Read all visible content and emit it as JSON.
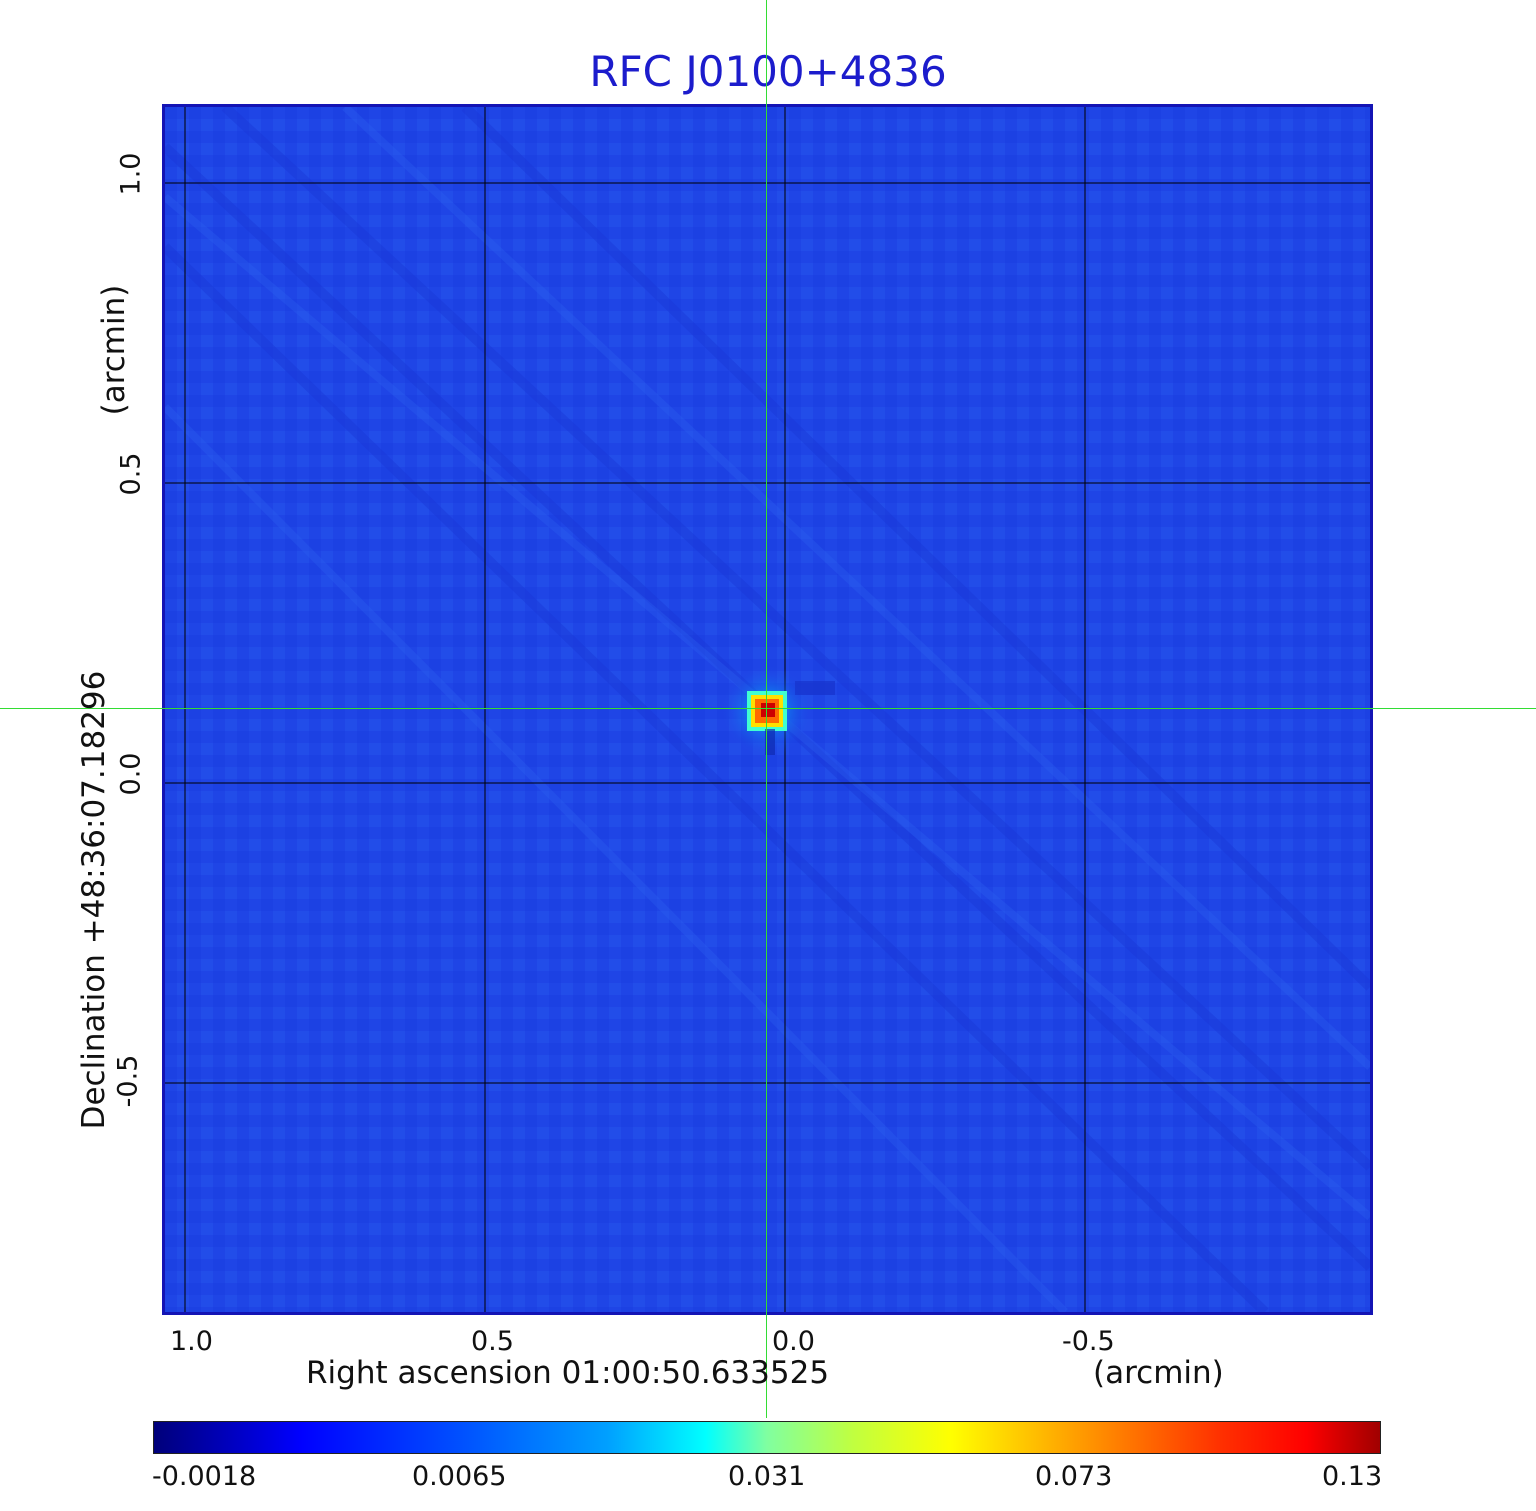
{
  "title": "RFC J0100+4836",
  "x_axis": {
    "label": "Right ascension  01:00:50.633525",
    "unit": "(arcmin)",
    "ticks": [
      "1.0",
      "0.5",
      "0.0",
      "-0.5"
    ]
  },
  "y_axis": {
    "label": "Declination  +48:36:07.18296",
    "unit": "(arcmin)",
    "ticks": [
      "1.0",
      "0.5",
      "0.0",
      "-0.5"
    ]
  },
  "colorbar": {
    "labels": [
      "-0.0018",
      "0.0065",
      "0.031",
      "0.073",
      "0.13"
    ]
  },
  "colors": {
    "title": "#1c1ccc",
    "background_map": "#1f45e6",
    "frame": "#1414b4",
    "crosshair": "#33dd33",
    "grid": "#000000"
  },
  "icons": {
    "source": "point-source-icon",
    "crosshair": "crosshair-icon"
  }
}
